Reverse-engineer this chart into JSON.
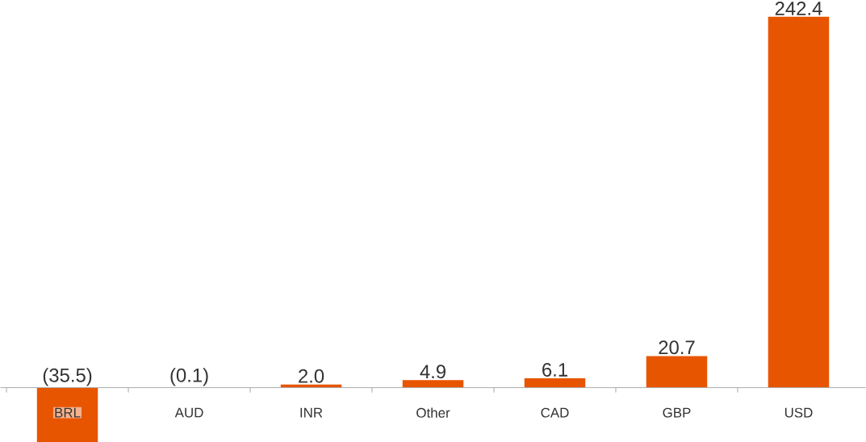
{
  "chart_data": {
    "type": "bar",
    "categories": [
      "BRL",
      "AUD",
      "INR",
      "Other",
      "CAD",
      "GBP",
      "USD"
    ],
    "values": [
      -35.5,
      -0.1,
      2.0,
      4.9,
      6.1,
      20.7,
      242.4
    ],
    "value_labels": [
      "(35.5)",
      "(0.1)",
      "2.0",
      "4.9",
      "6.1",
      "20.7",
      "242.4"
    ],
    "color": "#e85500"
  }
}
